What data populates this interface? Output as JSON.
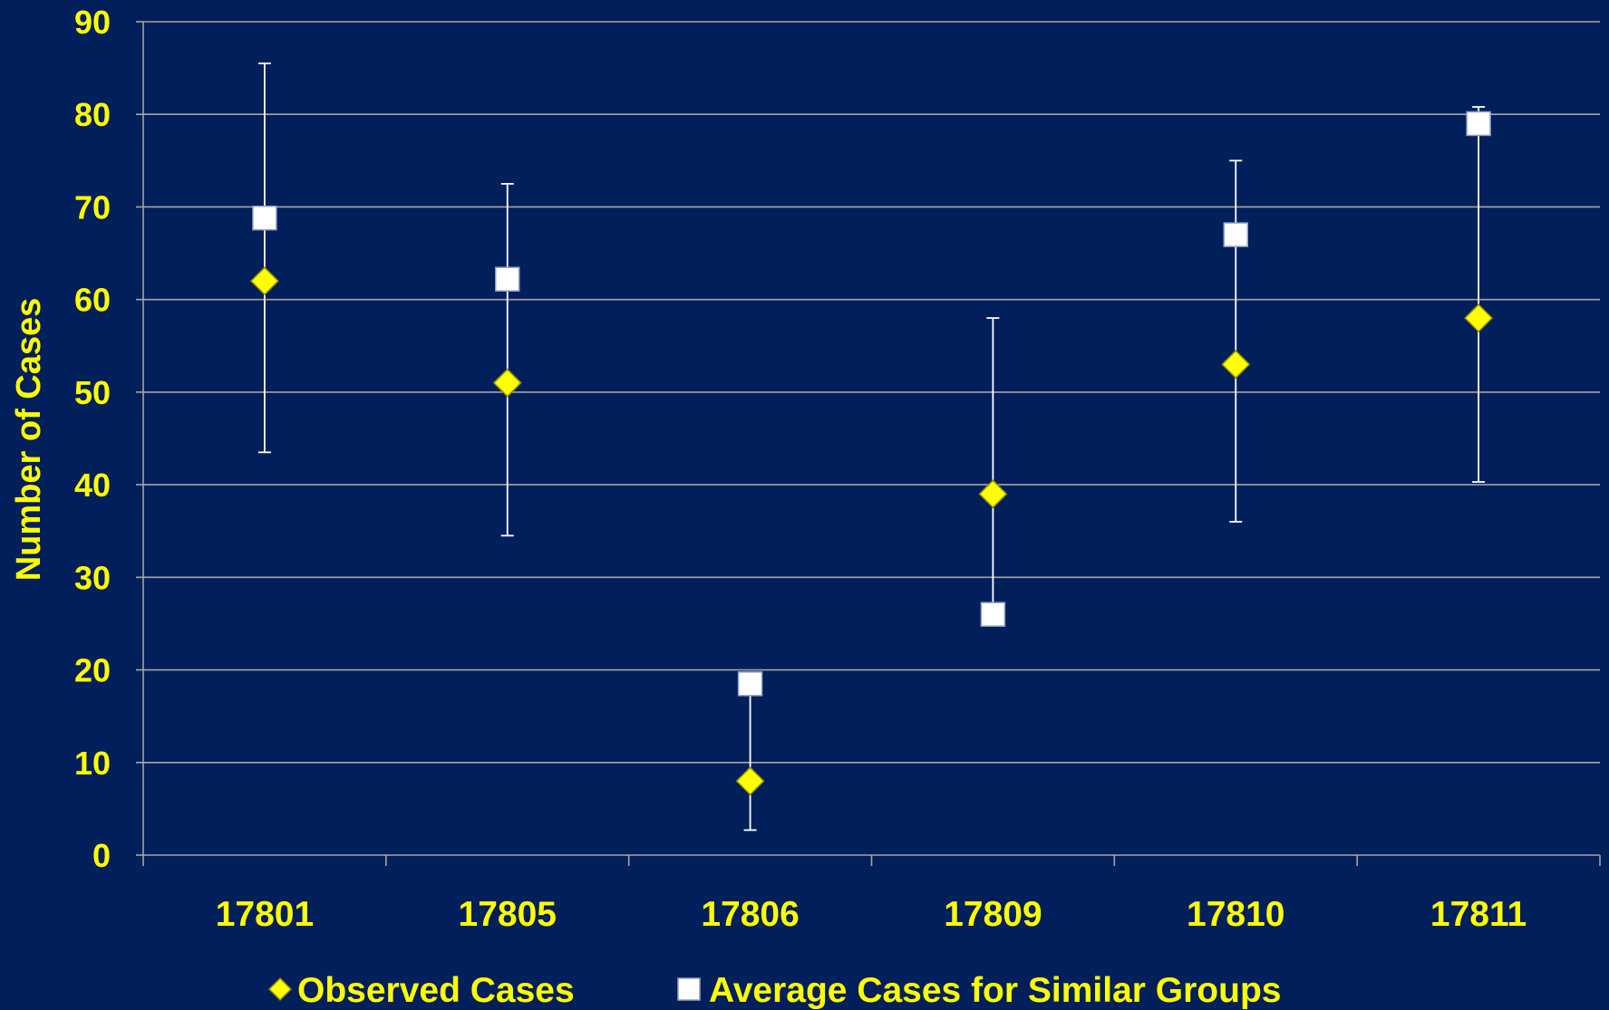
{
  "chart_data": {
    "type": "scatter",
    "title": "",
    "xlabel": "",
    "ylabel": "Number of Cases",
    "ylim": [
      0,
      90
    ],
    "yticks": [
      0,
      10,
      20,
      30,
      40,
      50,
      60,
      70,
      80,
      90
    ],
    "grid": true,
    "legend_position": "bottom",
    "categories": [
      "17801",
      "17805",
      "17806",
      "17809",
      "17810",
      "17811"
    ],
    "series": [
      {
        "name": "Observed Cases",
        "marker": "diamond",
        "color": "#FFFF00",
        "values": [
          62,
          51,
          8,
          39,
          53,
          58
        ]
      },
      {
        "name": "Average Cases for Similar Groups",
        "marker": "square",
        "color": "#FFFFFF",
        "values": [
          68.8,
          62.2,
          18.5,
          26,
          67,
          79
        ]
      }
    ],
    "error_bars": {
      "applies_to": "Observed Cases",
      "lower": [
        43.5,
        34.5,
        2.7,
        26,
        36,
        40.3
      ],
      "upper": [
        85.5,
        72.5,
        18.5,
        58,
        75,
        80.8
      ]
    },
    "colors": {
      "background": "#001F5B",
      "text": "#FFFF00",
      "axis": "#A6A6A6",
      "gridline": "#A6A6A6",
      "error_bar": "#FFFFFF"
    }
  }
}
